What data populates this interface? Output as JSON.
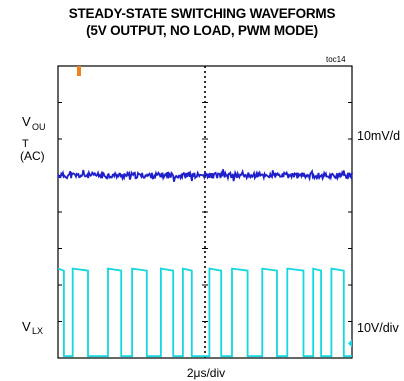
{
  "header": {
    "title_line1": "STEADY-STATE SWITCHING WAVEFORMS",
    "title_line2": "(5V OUTPUT,  NO LOAD, PWM MODE)",
    "figure_id": "toc14"
  },
  "chart_data": {
    "type": "line",
    "title": "STEADY-STATE SWITCHING WAVEFORMS (5V OUTPUT, NO LOAD, PWM MODE)",
    "xlabel": "2μs/div",
    "grid": true,
    "x_divisions": 10,
    "y_divisions": 8,
    "colors": {
      "vout": "#1f1fcc",
      "vlx": "#16d6e0",
      "marker": "#f08020",
      "grid": "#000000"
    },
    "channels": [
      {
        "name": "VOUT (AC)",
        "label_main": "V",
        "label_sub": "OU",
        "label_extra": "T",
        "label_coupling": "(AC)",
        "scale": "10mV/d",
        "baseline_div": 5.0,
        "noise_div": 0.08
      },
      {
        "name": "VLX",
        "label_main": "V",
        "label_sub": "LX",
        "scale": "10V/div",
        "low_div": 0.05,
        "high_div": 2.45,
        "pulses": [
          {
            "start_div": 0.0,
            "end_div": 0.2
          },
          {
            "start_div": 0.5,
            "end_div": 1.02
          },
          {
            "start_div": 1.7,
            "end_div": 2.15
          },
          {
            "start_div": 2.52,
            "end_div": 3.02
          },
          {
            "start_div": 3.5,
            "end_div": 3.92
          },
          {
            "start_div": 4.25,
            "end_div": 4.55
          },
          {
            "start_div": 5.15,
            "end_div": 5.55
          },
          {
            "start_div": 5.92,
            "end_div": 6.45
          },
          {
            "start_div": 6.95,
            "end_div": 7.45
          },
          {
            "start_div": 7.8,
            "end_div": 8.35
          },
          {
            "start_div": 8.68,
            "end_div": 8.95
          },
          {
            "start_div": 9.3,
            "end_div": 9.72
          }
        ]
      }
    ]
  }
}
